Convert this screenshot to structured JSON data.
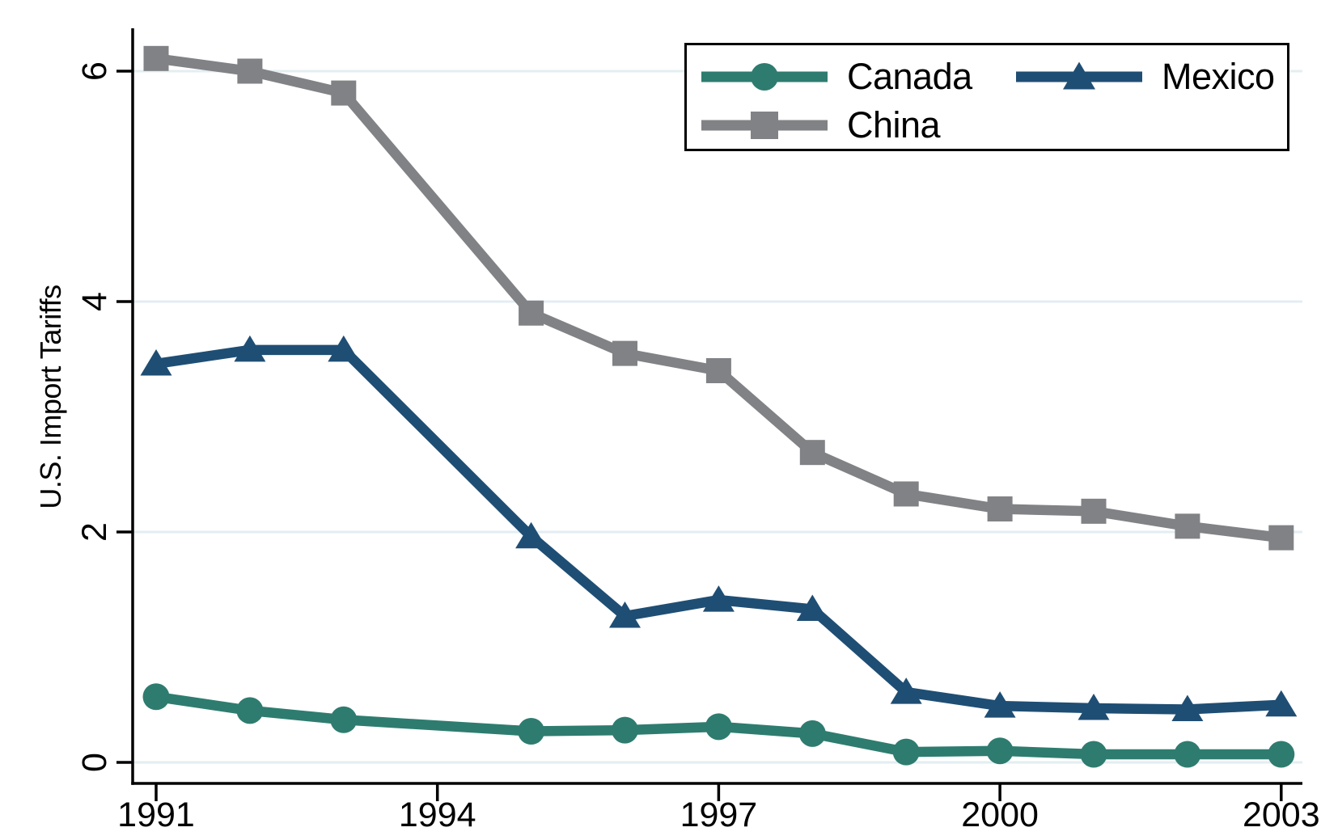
{
  "chart_data": {
    "type": "line",
    "title": "",
    "xlabel": "",
    "ylabel": "U.S. Import Tariffs",
    "xlim": [
      1990.75,
      2003.2
    ],
    "ylim": [
      -0.18,
      6.37
    ],
    "x_ticks": [
      1991,
      1994,
      1997,
      2000,
      2003
    ],
    "y_ticks": [
      0,
      2,
      4,
      6
    ],
    "grid": "horizontal",
    "legend_position": "top-right-inside",
    "colors": {
      "axis": "#000000",
      "gridline": "#e3eef2",
      "background": "#ffffff"
    },
    "series": [
      {
        "name": "Canada",
        "marker": "circle",
        "color": "#2e7c6f",
        "x": [
          1991,
          1992,
          1993,
          1995,
          1996,
          1997,
          1998,
          1999,
          2000,
          2001,
          2002,
          2003
        ],
        "values": [
          0.57,
          0.45,
          0.37,
          0.27,
          0.28,
          0.31,
          0.25,
          0.09,
          0.1,
          0.07,
          0.07,
          0.07
        ]
      },
      {
        "name": "Mexico",
        "marker": "triangle",
        "color": "#1f4e74",
        "x": [
          1991,
          1992,
          1993,
          1995,
          1996,
          1997,
          1998,
          1999,
          2000,
          2001,
          2002,
          2003
        ],
        "values": [
          3.46,
          3.58,
          3.58,
          1.96,
          1.27,
          1.41,
          1.33,
          0.61,
          0.49,
          0.47,
          0.46,
          0.5
        ]
      },
      {
        "name": "China",
        "marker": "square",
        "color": "#818285",
        "x": [
          1991,
          1992,
          1993,
          1995,
          1996,
          1997,
          1998,
          1999,
          2000,
          2001,
          2002,
          2003
        ],
        "values": [
          6.11,
          6.0,
          5.81,
          3.9,
          3.55,
          3.4,
          2.69,
          2.33,
          2.2,
          2.18,
          2.05,
          1.95
        ]
      }
    ]
  }
}
